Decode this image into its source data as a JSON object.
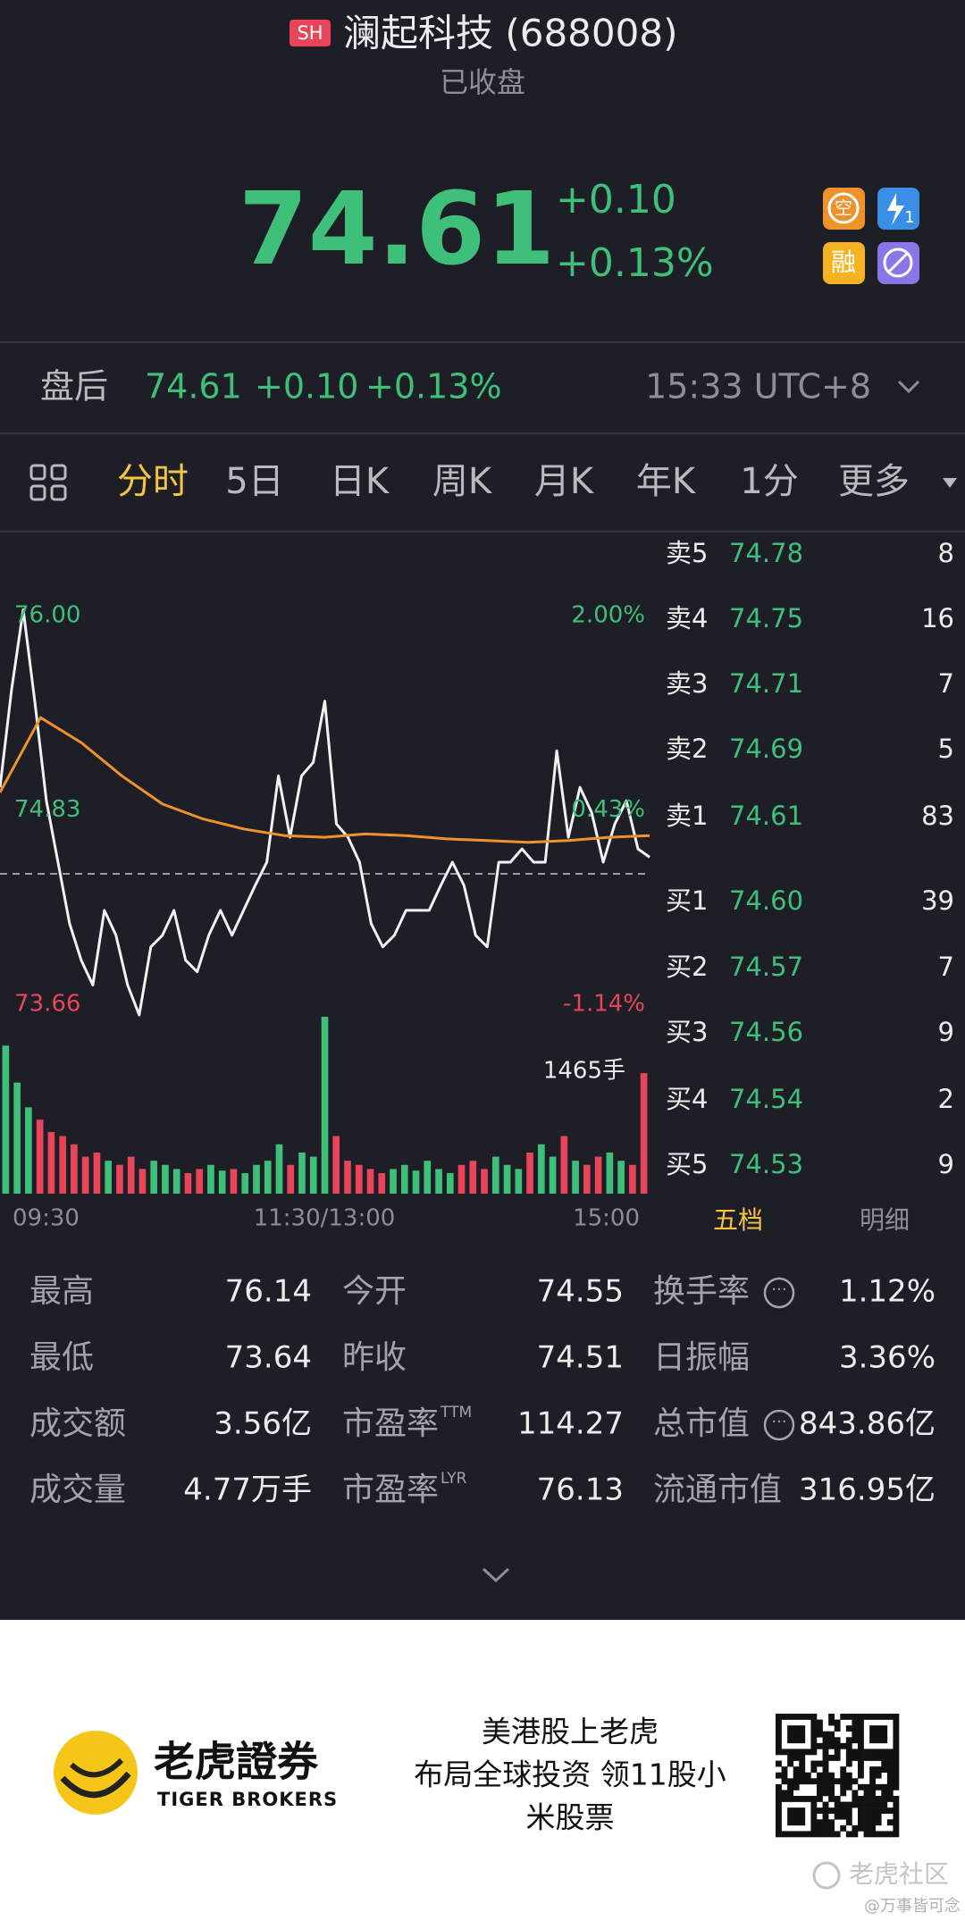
{
  "header": {
    "badge": "SH",
    "title": "澜起科技 (688008)",
    "status": "已收盘"
  },
  "quote": {
    "price": "74.61",
    "change": "+0.10",
    "change_pct": "+0.13%",
    "icons": [
      "空",
      "1",
      "融"
    ]
  },
  "after_hours": {
    "label": "盘后",
    "price": "74.61",
    "change": "+0.10",
    "change_pct": "+0.13%",
    "time": "15:33 UTC+8"
  },
  "tabs": {
    "items": [
      "分时",
      "5日",
      "日K",
      "周K",
      "月K",
      "年K",
      "1分",
      "更多"
    ],
    "active": 0
  },
  "chart_data": {
    "type": "line",
    "ylim": [
      73.66,
      76.0
    ],
    "yticks": [
      {
        "value": 76.0,
        "label": "76.00"
      },
      {
        "value": 74.83,
        "label": "74.83"
      },
      {
        "value": 73.66,
        "label": "73.66"
      }
    ],
    "y2lim": [
      -1.14,
      2.0
    ],
    "y2ticks": [
      {
        "value": 2.0,
        "label": "2.00%"
      },
      {
        "value": 0.43,
        "label": "0.43%"
      },
      {
        "value": -1.14,
        "label": "-1.14%"
      }
    ],
    "baseline": 74.51,
    "x_labels": [
      "09:30",
      "11:30/13:00",
      "15:00"
    ],
    "series": [
      {
        "color": "#f2f2f2",
        "values": [
          75.03,
          75.62,
          76.1,
          75.55,
          74.95,
          74.58,
          74.21,
          73.99,
          73.84,
          74.29,
          74.14,
          73.84,
          73.66,
          74.07,
          74.14,
          74.29,
          73.99,
          73.92,
          74.14,
          74.29,
          74.14,
          74.29,
          74.44,
          74.58,
          75.1,
          74.73,
          75.1,
          75.18,
          75.55,
          74.81,
          74.73,
          74.58,
          74.21,
          74.07,
          74.14,
          74.29,
          74.29,
          74.29,
          74.44,
          74.58,
          74.44,
          74.14,
          74.07,
          74.58,
          74.58,
          74.66,
          74.58,
          74.58,
          75.25,
          74.73,
          75.03,
          74.88,
          74.58,
          74.81,
          74.95,
          74.66,
          74.61
        ]
      },
      {
        "color": "#f0922b",
        "values": [
          75.0,
          75.45,
          75.3,
          75.1,
          74.93,
          74.84,
          74.78,
          74.74,
          74.73,
          74.75,
          74.74,
          74.72,
          74.71,
          74.7,
          74.71,
          74.73,
          74.74
        ]
      }
    ],
    "volume": {
      "up_color": "#3fc07a",
      "down_color": "#e8455a",
      "label": "1465手",
      "values": [
        1800,
        1350,
        1050,
        900,
        750,
        700,
        600,
        450,
        500,
        400,
        350,
        450,
        300,
        400,
        350,
        300,
        250,
        300,
        350,
        280,
        300,
        250,
        350,
        400,
        600,
        350,
        500,
        450,
        2150,
        700,
        400,
        350,
        300,
        250,
        300,
        350,
        280,
        400,
        300,
        250,
        350,
        400,
        300,
        450,
        350,
        300,
        500,
        600,
        450,
        700,
        400,
        350,
        450,
        500,
        400,
        350,
        1465
      ]
    }
  },
  "order_book": {
    "rows": [
      {
        "label": "卖5",
        "price": "74.78",
        "qty": "8"
      },
      {
        "label": "卖4",
        "price": "74.75",
        "qty": "16"
      },
      {
        "label": "卖3",
        "price": "74.71",
        "qty": "7"
      },
      {
        "label": "卖2",
        "price": "74.69",
        "qty": "5"
      },
      {
        "label": "卖1",
        "price": "74.61",
        "qty": "83"
      },
      {
        "label": "买1",
        "price": "74.60",
        "qty": "39"
      },
      {
        "label": "买2",
        "price": "74.57",
        "qty": "7"
      },
      {
        "label": "买3",
        "price": "74.56",
        "qty": "9"
      },
      {
        "label": "买4",
        "price": "74.54",
        "qty": "2"
      },
      {
        "label": "买5",
        "price": "74.53",
        "qty": "9"
      }
    ],
    "tabs": [
      "五档",
      "明细"
    ]
  },
  "stats": {
    "rows": [
      [
        {
          "label": "最高",
          "value": "76.14"
        },
        {
          "label": "今开",
          "value": "74.55"
        },
        {
          "label": "换手率",
          "value": "1.12%"
        }
      ],
      [
        {
          "label": "最低",
          "value": "73.64"
        },
        {
          "label": "昨收",
          "value": "74.51"
        },
        {
          "label": "日振幅",
          "value": "3.36%"
        }
      ],
      [
        {
          "label": "成交额",
          "value": "3.56亿"
        },
        {
          "label": "市盈率",
          "sup": "TTM",
          "value": "114.27"
        },
        {
          "label": "总市值",
          "value": "843.86亿"
        }
      ],
      [
        {
          "label": "成交量",
          "value": "4.77万手"
        },
        {
          "label": "市盈率",
          "sup": "LYR",
          "value": "76.13"
        },
        {
          "label": "流通市值",
          "value": "316.95亿"
        }
      ]
    ]
  },
  "footer": {
    "brand": "老虎證券",
    "brand_en": "TIGER BROKERS",
    "slogan": [
      "美港股上老虎",
      "布局全球投资 领11股小",
      "米股票"
    ],
    "watermark": "老虎社区",
    "credit": "@万事皆可念"
  }
}
